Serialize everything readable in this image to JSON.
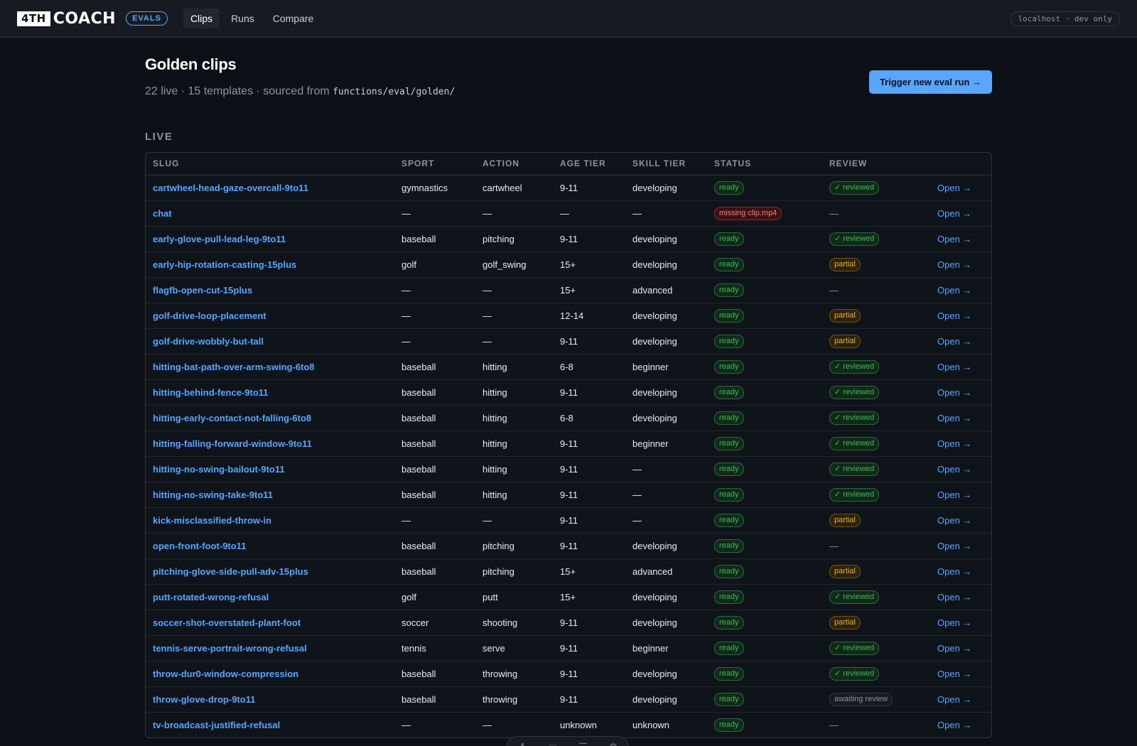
{
  "header": {
    "logo_box": "4TH",
    "logo_text": "COACH",
    "badge": "EVALS",
    "nav": [
      {
        "label": "Clips",
        "active": true
      },
      {
        "label": "Runs",
        "active": false
      },
      {
        "label": "Compare",
        "active": false
      }
    ],
    "env": "localhost · dev only"
  },
  "page": {
    "title": "Golden clips",
    "subtitle_prefix": "22 live · 15 templates · sourced from ",
    "subtitle_path": "functions/eval/golden/",
    "trigger_label": "Trigger new eval run →",
    "section": "LIVE"
  },
  "table": {
    "columns": [
      "SLUG",
      "SPORT",
      "ACTION",
      "AGE TIER",
      "SKILL TIER",
      "STATUS",
      "REVIEW",
      ""
    ],
    "open_label": "Open →",
    "rows": [
      {
        "slug": "cartwheel-head-gaze-overcall-9to11",
        "sport": "gymnastics",
        "action": "cartwheel",
        "age": "9-11",
        "skill": "developing",
        "status": "ready",
        "review": "✓ reviewed",
        "review_type": "reviewed"
      },
      {
        "slug": "chat",
        "sport": "—",
        "action": "—",
        "age": "—",
        "skill": "—",
        "status": "missing clip.mp4",
        "status_type": "missing",
        "review": "—",
        "review_type": "none"
      },
      {
        "slug": "early-glove-pull-lead-leg-9to11",
        "sport": "baseball",
        "action": "pitching",
        "age": "9-11",
        "skill": "developing",
        "status": "ready",
        "review": "✓ reviewed",
        "review_type": "reviewed"
      },
      {
        "slug": "early-hip-rotation-casting-15plus",
        "sport": "golf",
        "action": "golf_swing",
        "age": "15+",
        "skill": "developing",
        "status": "ready",
        "review": "partial",
        "review_type": "partial"
      },
      {
        "slug": "flagfb-open-cut-15plus",
        "sport": "—",
        "action": "—",
        "age": "15+",
        "skill": "advanced",
        "status": "ready",
        "review": "—",
        "review_type": "none"
      },
      {
        "slug": "golf-drive-loop-placement",
        "sport": "—",
        "action": "—",
        "age": "12-14",
        "skill": "developing",
        "status": "ready",
        "review": "partial",
        "review_type": "partial"
      },
      {
        "slug": "golf-drive-wobbly-but-tall",
        "sport": "—",
        "action": "—",
        "age": "9-11",
        "skill": "developing",
        "status": "ready",
        "review": "partial",
        "review_type": "partial"
      },
      {
        "slug": "hitting-bat-path-over-arm-swing-6to8",
        "sport": "baseball",
        "action": "hitting",
        "age": "6-8",
        "skill": "beginner",
        "status": "ready",
        "review": "✓ reviewed",
        "review_type": "reviewed"
      },
      {
        "slug": "hitting-behind-fence-9to11",
        "sport": "baseball",
        "action": "hitting",
        "age": "9-11",
        "skill": "developing",
        "status": "ready",
        "review": "✓ reviewed",
        "review_type": "reviewed"
      },
      {
        "slug": "hitting-early-contact-not-falling-6to8",
        "sport": "baseball",
        "action": "hitting",
        "age": "6-8",
        "skill": "developing",
        "status": "ready",
        "review": "✓ reviewed",
        "review_type": "reviewed"
      },
      {
        "slug": "hitting-falling-forward-window-9to11",
        "sport": "baseball",
        "action": "hitting",
        "age": "9-11",
        "skill": "beginner",
        "status": "ready",
        "review": "✓ reviewed",
        "review_type": "reviewed"
      },
      {
        "slug": "hitting-no-swing-bailout-9to11",
        "sport": "baseball",
        "action": "hitting",
        "age": "9-11",
        "skill": "—",
        "status": "ready",
        "review": "✓ reviewed",
        "review_type": "reviewed"
      },
      {
        "slug": "hitting-no-swing-take-9to11",
        "sport": "baseball",
        "action": "hitting",
        "age": "9-11",
        "skill": "—",
        "status": "ready",
        "review": "✓ reviewed",
        "review_type": "reviewed"
      },
      {
        "slug": "kick-misclassified-throw-in",
        "sport": "—",
        "action": "—",
        "age": "9-11",
        "skill": "—",
        "status": "ready",
        "review": "partial",
        "review_type": "partial"
      },
      {
        "slug": "open-front-foot-9to11",
        "sport": "baseball",
        "action": "pitching",
        "age": "9-11",
        "skill": "developing",
        "status": "ready",
        "review": "—",
        "review_type": "none"
      },
      {
        "slug": "pitching-glove-side-pull-adv-15plus",
        "sport": "baseball",
        "action": "pitching",
        "age": "15+",
        "skill": "advanced",
        "status": "ready",
        "review": "partial",
        "review_type": "partial"
      },
      {
        "slug": "putt-rotated-wrong-refusal",
        "sport": "golf",
        "action": "putt",
        "age": "15+",
        "skill": "developing",
        "status": "ready",
        "review": "✓ reviewed",
        "review_type": "reviewed"
      },
      {
        "slug": "soccer-shot-overstated-plant-foot",
        "sport": "soccer",
        "action": "shooting",
        "age": "9-11",
        "skill": "developing",
        "status": "ready",
        "review": "partial",
        "review_type": "partial"
      },
      {
        "slug": "tennis-serve-portrait-wrong-refusal",
        "sport": "tennis",
        "action": "serve",
        "age": "9-11",
        "skill": "beginner",
        "status": "ready",
        "review": "✓ reviewed",
        "review_type": "reviewed"
      },
      {
        "slug": "throw-dur0-window-compression",
        "sport": "baseball",
        "action": "throwing",
        "age": "9-11",
        "skill": "developing",
        "status": "ready",
        "review": "✓ reviewed",
        "review_type": "reviewed"
      },
      {
        "slug": "throw-glove-drop-9to11",
        "sport": "baseball",
        "action": "throwing",
        "age": "9-11",
        "skill": "developing",
        "status": "ready",
        "review": "awaiting review",
        "review_type": "awaiting"
      },
      {
        "slug": "tv-broadcast-justified-refusal",
        "sport": "—",
        "action": "—",
        "age": "unknown",
        "skill": "unknown",
        "status": "ready",
        "review": "—",
        "review_type": "none"
      }
    ]
  },
  "colors": {
    "accent": "#58a6ff",
    "ready": "#3fb950",
    "missing": "#ff7b72",
    "partial": "#e3b341",
    "background": "#0d1117"
  }
}
